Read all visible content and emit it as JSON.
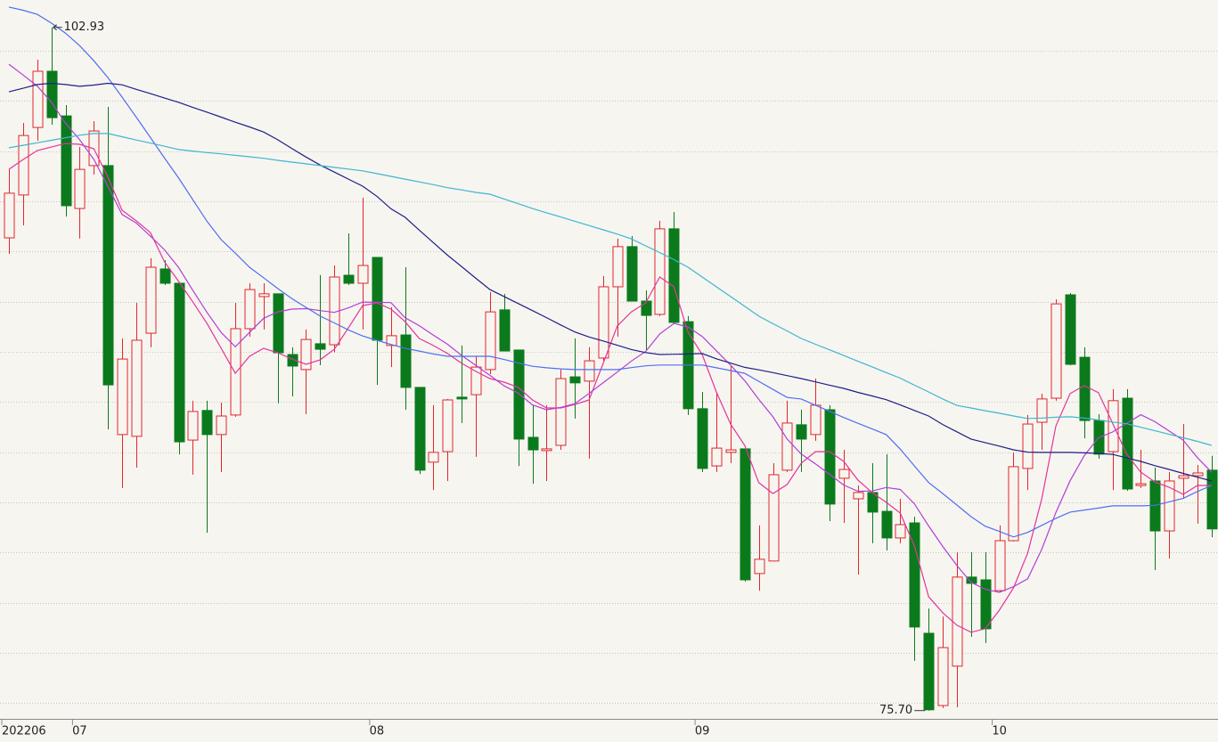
{
  "chart_data": {
    "type": "candlestick",
    "categories": [
      "202206",
      null,
      null,
      null,
      null,
      "07",
      null,
      null,
      null,
      null,
      null,
      null,
      null,
      null,
      null,
      null,
      null,
      null,
      null,
      null,
      null,
      null,
      null,
      null,
      null,
      null,
      "08",
      null,
      null,
      null,
      null,
      null,
      null,
      null,
      null,
      null,
      null,
      null,
      null,
      null,
      null,
      null,
      null,
      null,
      null,
      null,
      null,
      null,
      null,
      "09",
      null,
      null,
      null,
      null,
      null,
      null,
      null,
      null,
      null,
      null,
      null,
      null,
      null,
      null,
      null,
      null,
      null,
      null,
      null,
      null,
      "10",
      null,
      null,
      null,
      null,
      null,
      null,
      null,
      null,
      null,
      null,
      null,
      null,
      null,
      null,
      null
    ],
    "open": [
      94.54,
      96.25,
      98.94,
      101.18,
      99.4,
      95.71,
      97.42,
      97.42,
      86.7,
      86.63,
      90.74,
      93.3,
      92.73,
      86.48,
      87.66,
      86.7,
      87.48,
      90.92,
      92.2,
      92.31,
      89.89,
      89.29,
      90.32,
      90.28,
      93.05,
      92.73,
      93.76,
      90.25,
      90.67,
      88.58,
      85.6,
      86.02,
      88.19,
      88.29,
      89.29,
      91.67,
      90.07,
      86.59,
      86.06,
      86.27,
      89.0,
      88.83,
      89.75,
      92.59,
      94.19,
      92.02,
      91.49,
      94.9,
      91.2,
      87.73,
      85.45,
      85.99,
      86.13,
      81.16,
      81.66,
      85.28,
      87.09,
      86.7,
      87.69,
      84.96,
      84.14,
      84.39,
      83.64,
      82.58,
      83.18,
      78.78,
      75.9,
      77.47,
      81.02,
      80.91,
      80.48,
      82.47,
      85.35,
      87.19,
      88.15,
      92.27,
      89.78,
      87.26,
      86.02,
      88.15,
      84.67,
      84.85,
      82.86,
      84.96,
      85.06,
      85.28
    ],
    "high": [
      97.28,
      99.12,
      101.64,
      102.93,
      99.83,
      98.16,
      99.19,
      99.76,
      90.53,
      91.95,
      93.73,
      93.65,
      92.73,
      88.05,
      88.05,
      87.97,
      91.95,
      92.73,
      92.73,
      92.31,
      90.18,
      90.89,
      93.06,
      93.44,
      94.72,
      96.14,
      93.76,
      91.77,
      93.37,
      88.58,
      87.87,
      88.12,
      90.25,
      89.82,
      92.38,
      92.31,
      90.07,
      87.87,
      87.87,
      89.29,
      90.53,
      90.18,
      93.02,
      94.51,
      94.61,
      92.45,
      95.22,
      95.57,
      91.42,
      88.4,
      88.4,
      89.46,
      86.13,
      83.08,
      85.56,
      88.05,
      87.69,
      88.93,
      87.87,
      86.09,
      84.67,
      85.56,
      85.92,
      84.14,
      83.43,
      79.77,
      79.45,
      82.01,
      82.01,
      82.01,
      83.08,
      85.99,
      87.48,
      88.33,
      92.09,
      92.34,
      90.18,
      87.51,
      88.51,
      88.51,
      86.09,
      85.38,
      85.21,
      87.12,
      85.49,
      85.85
    ],
    "low": [
      93.9,
      95.04,
      98.41,
      99.05,
      95.39,
      94.51,
      97.06,
      86.91,
      84.57,
      85.38,
      90.18,
      92.66,
      85.91,
      85.1,
      82.79,
      85.21,
      87.41,
      90.6,
      90.89,
      87.94,
      88.22,
      87.51,
      89.47,
      89.98,
      92.66,
      90.89,
      88.68,
      89.39,
      87.69,
      85.13,
      84.49,
      84.85,
      87.16,
      85.81,
      89.11,
      90.03,
      85.45,
      84.74,
      84.85,
      86.09,
      87.34,
      85.74,
      89.64,
      90.6,
      92.02,
      90.07,
      91.42,
      91.13,
      87.48,
      85.21,
      85.21,
      85.56,
      80.84,
      80.48,
      81.66,
      85.21,
      85.21,
      86.45,
      83.25,
      83.18,
      81.12,
      82.37,
      82.08,
      82.37,
      77.68,
      75.7,
      75.8,
      75.83,
      78.64,
      78.39,
      80.41,
      82.44,
      84.49,
      86.09,
      88.05,
      89.46,
      86.55,
      85.74,
      84.49,
      84.46,
      84.57,
      81.3,
      81.76,
      84.14,
      83.15,
      82.61
    ],
    "close": [
      96.32,
      98.62,
      101.18,
      99.33,
      95.82,
      97.27,
      98.8,
      88.68,
      89.71,
      90.46,
      93.37,
      92.73,
      86.41,
      87.62,
      86.7,
      87.44,
      90.92,
      92.48,
      92.31,
      89.96,
      89.43,
      90.49,
      90.1,
      92.98,
      92.73,
      93.44,
      90.46,
      90.64,
      88.58,
      85.28,
      85.99,
      88.08,
      88.12,
      89.39,
      91.59,
      90.03,
      86.52,
      86.09,
      86.13,
      88.93,
      88.76,
      89.64,
      92.59,
      94.19,
      92.02,
      91.45,
      94.9,
      91.17,
      87.73,
      85.35,
      86.16,
      86.09,
      80.91,
      81.73,
      85.1,
      87.16,
      86.52,
      87.87,
      83.93,
      85.31,
      84.39,
      83.61,
      82.58,
      83.11,
      79.03,
      75.73,
      78.21,
      81.02,
      80.77,
      78.96,
      82.47,
      85.42,
      87.12,
      88.12,
      91.91,
      89.5,
      87.26,
      85.92,
      88.05,
      84.53,
      84.74,
      82.86,
      84.85,
      85.06,
      85.17,
      82.94
    ],
    "up_color": "#e0262b",
    "down_color": "#0b7a1c",
    "series": [
      {
        "color": "#e3349a",
        "values": [
          97.27,
          97.66,
          98.02,
          98.16,
          98.3,
          98.27,
          98.09,
          96.96,
          95.64,
          95.22,
          94.75,
          93.58,
          92.8,
          91.99,
          91.13,
          90.14,
          89.14,
          89.82,
          90.14,
          89.96,
          89.71,
          89.5,
          89.68,
          90.1,
          90.96,
          91.84,
          91.95,
          91.7,
          91.2,
          90.53,
          90.25,
          89.93,
          89.54,
          89.22,
          88.93,
          88.79,
          88.58,
          88.08,
          87.76,
          87.76,
          87.9,
          88.08,
          89.54,
          91.03,
          91.59,
          91.95,
          92.98,
          92.59,
          90.78,
          89.89,
          88.4,
          87.12,
          86.27,
          84.78,
          84.35,
          84.71,
          85.56,
          86.02,
          86.02,
          85.63,
          84.89,
          84.39,
          84.0,
          83.57,
          82.26,
          80.24,
          79.6,
          79.1,
          78.82,
          78.96,
          79.7,
          80.59,
          81.98,
          84.14,
          87.05,
          88.33,
          88.65,
          88.37,
          87.16,
          85.92,
          85.2,
          84.81,
          84.6,
          84.32,
          84.67,
          84.67
        ]
      },
      {
        "color": "#b23fd6",
        "values": [
          101.46,
          101.03,
          100.59,
          99.95,
          99.11,
          98.45,
          97.67,
          96.59,
          95.47,
          95.13,
          94.61,
          94.06,
          93.35,
          92.45,
          91.57,
          90.77,
          90.2,
          90.77,
          91.33,
          91.59,
          91.7,
          91.72,
          91.64,
          91.57,
          91.75,
          91.98,
          91.97,
          91.96,
          91.36,
          91.04,
          90.66,
          90.3,
          89.85,
          89.46,
          89.06,
          88.64,
          88.35,
          87.88,
          87.69,
          87.78,
          87.93,
          88.34,
          88.77,
          89.19,
          89.63,
          90.01,
          90.71,
          91.13,
          90.99,
          90.61,
          90.04,
          89.47,
          88.85,
          88.1,
          87.41,
          86.52,
          85.92,
          85.53,
          85.12,
          84.69,
          84.44,
          84.45,
          84.59,
          84.51,
          83.94,
          83.06,
          82.24,
          81.48,
          80.81,
          80.54,
          80.41,
          80.64,
          80.95,
          82.13,
          83.6,
          84.86,
          85.86,
          86.57,
          86.8,
          87.15,
          87.49,
          87.21,
          86.84,
          86.47,
          85.78,
          85.2
        ]
      },
      {
        "color": "#4f6ff0",
        "values": [
          103.74,
          103.61,
          103.45,
          103.1,
          102.7,
          102.2,
          101.6,
          100.92,
          100.15,
          99.35,
          98.54,
          97.72,
          96.92,
          96.06,
          95.2,
          94.47,
          93.93,
          93.37,
          92.95,
          92.52,
          92.12,
          91.77,
          91.42,
          91.15,
          90.87,
          90.63,
          90.46,
          90.29,
          90.14,
          90.03,
          89.91,
          89.82,
          89.82,
          89.82,
          89.82,
          89.69,
          89.55,
          89.42,
          89.36,
          89.32,
          89.29,
          89.29,
          89.29,
          89.29,
          89.37,
          89.44,
          89.47,
          89.47,
          89.47,
          89.47,
          89.36,
          89.25,
          89.14,
          88.82,
          88.5,
          88.18,
          88.12,
          87.87,
          87.63,
          87.38,
          87.15,
          86.93,
          86.7,
          86.12,
          85.45,
          84.79,
          84.35,
          83.89,
          83.43,
          83.05,
          82.84,
          82.62,
          82.8,
          83.08,
          83.36,
          83.61,
          83.69,
          83.77,
          83.86,
          83.86,
          83.86,
          83.88,
          84.02,
          84.16,
          84.43,
          84.67
        ]
      },
      {
        "color": "#1e1f86",
        "values": [
          100.36,
          100.5,
          100.65,
          100.7,
          100.65,
          100.58,
          100.63,
          100.7,
          100.64,
          100.46,
          100.29,
          100.11,
          99.94,
          99.74,
          99.55,
          99.35,
          99.15,
          98.96,
          98.76,
          98.45,
          98.1,
          97.76,
          97.44,
          97.16,
          96.88,
          96.6,
          96.2,
          95.7,
          95.36,
          94.85,
          94.35,
          93.85,
          93.39,
          92.93,
          92.48,
          92.2,
          91.92,
          91.64,
          91.36,
          91.07,
          90.79,
          90.59,
          90.43,
          90.26,
          90.09,
          89.97,
          89.89,
          89.9,
          89.91,
          89.93,
          89.72,
          89.55,
          89.38,
          89.28,
          89.17,
          89.05,
          88.93,
          88.8,
          88.67,
          88.54,
          88.38,
          88.24,
          88.09,
          87.88,
          87.66,
          87.44,
          87.1,
          86.81,
          86.52,
          86.38,
          86.24,
          86.09,
          86.0,
          85.99,
          85.99,
          85.99,
          85.97,
          85.95,
          85.91,
          85.77,
          85.63,
          85.46,
          85.31,
          85.15,
          85.0,
          84.85
        ]
      },
      {
        "color": "#3fb6cf",
        "values": [
          98.13,
          98.23,
          98.33,
          98.43,
          98.53,
          98.63,
          98.7,
          98.7,
          98.57,
          98.44,
          98.32,
          98.19,
          98.06,
          98.0,
          97.94,
          97.89,
          97.83,
          97.77,
          97.71,
          97.63,
          97.56,
          97.49,
          97.42,
          97.35,
          97.28,
          97.21,
          97.1,
          96.99,
          96.88,
          96.77,
          96.66,
          96.54,
          96.45,
          96.35,
          96.28,
          96.09,
          95.9,
          95.71,
          95.54,
          95.37,
          95.2,
          95.03,
          94.86,
          94.69,
          94.5,
          94.22,
          93.95,
          93.67,
          93.37,
          92.98,
          92.59,
          92.2,
          91.81,
          91.42,
          91.12,
          90.83,
          90.53,
          90.3,
          90.08,
          89.85,
          89.62,
          89.4,
          89.17,
          88.95,
          88.67,
          88.4,
          88.12,
          87.86,
          87.76,
          87.65,
          87.55,
          87.44,
          87.34,
          87.36,
          87.39,
          87.41,
          87.36,
          87.28,
          87.2,
          87.13,
          86.99,
          86.85,
          86.71,
          86.57,
          86.43,
          86.27
        ]
      }
    ],
    "annotations": [
      {
        "value": 102.93,
        "label": "102.93"
      },
      {
        "value": 75.7,
        "label": "75.70"
      }
    ],
    "ylim": [
      75.37,
      104.02
    ],
    "yticks": [
      76,
      78,
      80,
      82,
      84,
      86,
      88,
      90,
      92,
      94,
      96,
      98,
      100,
      102
    ],
    "grid": true
  }
}
